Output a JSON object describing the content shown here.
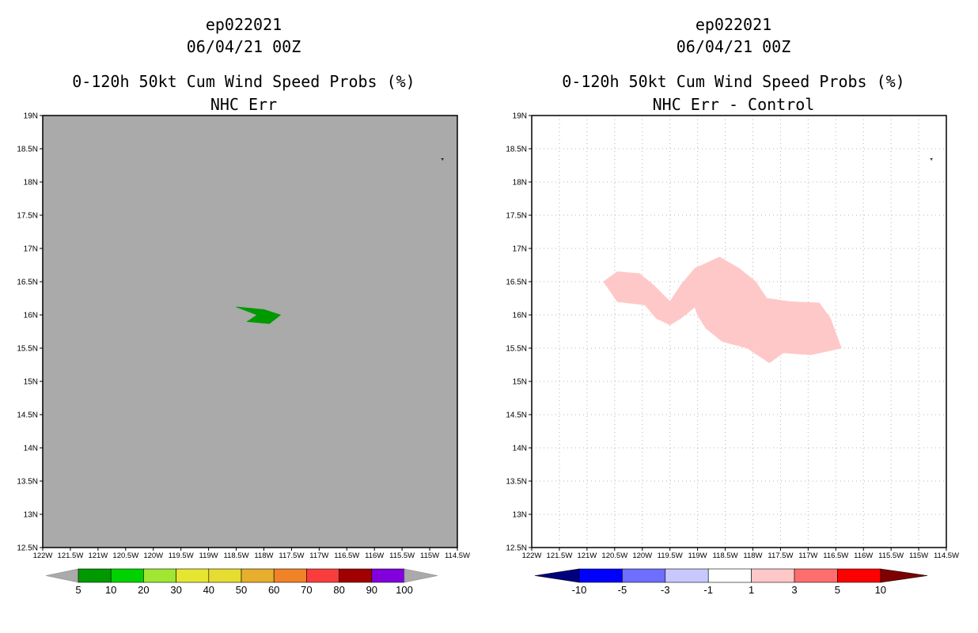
{
  "left_panel": {
    "storm_id": "ep022021",
    "datetime": "06/04/21 00Z",
    "product": "0-120h 50kt Cum Wind Speed Probs (%)",
    "subtitle": "NHC Err",
    "background_color": "#aaaaaa",
    "colorbar": {
      "colors": [
        "#009a00",
        "#00d200",
        "#a0e632",
        "#e6e632",
        "#e6dc32",
        "#e6af2d",
        "#f08228",
        "#fa3c3c",
        "#a00000",
        "#8200dc"
      ],
      "labels": [
        "5",
        "10",
        "20",
        "30",
        "40",
        "50",
        "60",
        "70",
        "80",
        "90",
        "100"
      ]
    }
  },
  "right_panel": {
    "storm_id": "ep022021",
    "datetime": "06/04/21 00Z",
    "product": "0-120h 50kt Cum Wind Speed Probs (%)",
    "subtitle": "NHC Err - Control",
    "background_color": "#ffffff",
    "colorbar": {
      "colors": [
        "#00007f",
        "#0000ff",
        "#6e6eff",
        "#c8c8ff",
        "#ffffff",
        "#ffc8c8",
        "#ff6e6e",
        "#ff0000",
        "#7f0000"
      ],
      "labels": [
        "-10",
        "-5",
        "-3",
        "-1",
        "1",
        "3",
        "5",
        "10"
      ]
    }
  },
  "axes": {
    "lat_labels": [
      "19N",
      "18.5N",
      "18N",
      "17.5N",
      "17N",
      "16.5N",
      "16N",
      "15.5N",
      "15N",
      "14.5N",
      "14N",
      "13.5N",
      "13N",
      "12.5N"
    ],
    "lon_labels": [
      "122W",
      "121.5W",
      "121W",
      "120.5W",
      "120W",
      "119.5W",
      "119W",
      "118.5W",
      "118W",
      "117.5W",
      "117W",
      "116.5W",
      "116W",
      "115.5W",
      "115W",
      "114.5W"
    ]
  },
  "chart_data": [
    {
      "type": "filled-contour",
      "title": "0-120h 50kt Cum Wind Speed Probs (%) - NHC Err",
      "xlim": [
        -122,
        -114.5
      ],
      "ylim": [
        12.5,
        19
      ],
      "regions": [
        {
          "bin": "5-10",
          "color": "#009a00",
          "lonlat": [
            [
              -118.12,
              16.0
            ],
            [
              -118.5,
              16.12
            ],
            [
              -118.0,
              16.08
            ],
            [
              -117.7,
              16.0
            ],
            [
              -117.9,
              15.87
            ],
            [
              -118.3,
              15.9
            ],
            [
              -118.12,
              16.0
            ]
          ]
        }
      ]
    },
    {
      "type": "filled-contour",
      "title": "0-120h 50kt Cum Wind Speed Probs (%) - NHC Err - Control",
      "xlim": [
        -122,
        -114.5
      ],
      "ylim": [
        12.5,
        19
      ],
      "regions": [
        {
          "bin": "1-3",
          "color": "#ffc8c8",
          "lonlat": [
            [
              -120.7,
              16.5
            ],
            [
              -120.45,
              16.65
            ],
            [
              -120.05,
              16.62
            ],
            [
              -119.8,
              16.45
            ],
            [
              -119.5,
              16.2
            ],
            [
              -119.3,
              16.45
            ],
            [
              -119.05,
              16.7
            ],
            [
              -118.6,
              16.87
            ],
            [
              -118.25,
              16.7
            ],
            [
              -117.95,
              16.5
            ],
            [
              -117.75,
              16.25
            ],
            [
              -117.35,
              16.2
            ],
            [
              -116.8,
              16.18
            ],
            [
              -116.6,
              15.95
            ],
            [
              -116.4,
              15.5
            ],
            [
              -116.95,
              15.4
            ],
            [
              -117.45,
              15.43
            ],
            [
              -117.7,
              15.28
            ],
            [
              -118.1,
              15.5
            ],
            [
              -118.55,
              15.6
            ],
            [
              -118.85,
              15.8
            ],
            [
              -119.0,
              16.0
            ],
            [
              -119.05,
              16.12
            ],
            [
              -119.3,
              15.95
            ],
            [
              -119.5,
              15.85
            ],
            [
              -119.75,
              15.95
            ],
            [
              -119.95,
              16.15
            ],
            [
              -120.45,
              16.2
            ],
            [
              -120.7,
              16.5
            ]
          ]
        }
      ]
    }
  ]
}
